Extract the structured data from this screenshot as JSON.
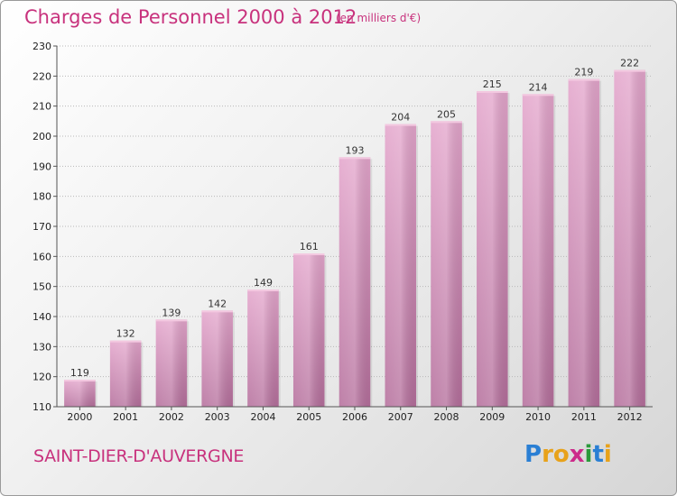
{
  "title": "Charges de Personnel 2000 à 2012",
  "subtitle": "(en milliers d'€)",
  "commune": "SAINT-DIER-D'AUVERGNE",
  "logo": {
    "letters": [
      "P",
      "r",
      "o",
      "x",
      "i",
      "t",
      "i"
    ],
    "colors": [
      "#2a7fd4",
      "#e8a21a",
      "#e8a21a",
      "#cc2a8a",
      "#2a9a3a",
      "#2a7fd4",
      "#e8a21a"
    ]
  },
  "colors": {
    "accent": "#c8327d",
    "bar": "#d98cba",
    "bar_dark": "#b86a9a"
  },
  "chart_data": {
    "type": "bar",
    "categories": [
      "2000",
      "2001",
      "2002",
      "2003",
      "2004",
      "2005",
      "2006",
      "2007",
      "2008",
      "2009",
      "2010",
      "2011",
      "2012"
    ],
    "values": [
      119,
      132,
      139,
      142,
      149,
      161,
      193,
      204,
      205,
      215,
      214,
      219,
      222
    ],
    "ylim": [
      110,
      230
    ],
    "yticks": [
      110,
      120,
      130,
      140,
      150,
      160,
      170,
      180,
      190,
      200,
      210,
      220,
      230
    ],
    "grid": true
  }
}
